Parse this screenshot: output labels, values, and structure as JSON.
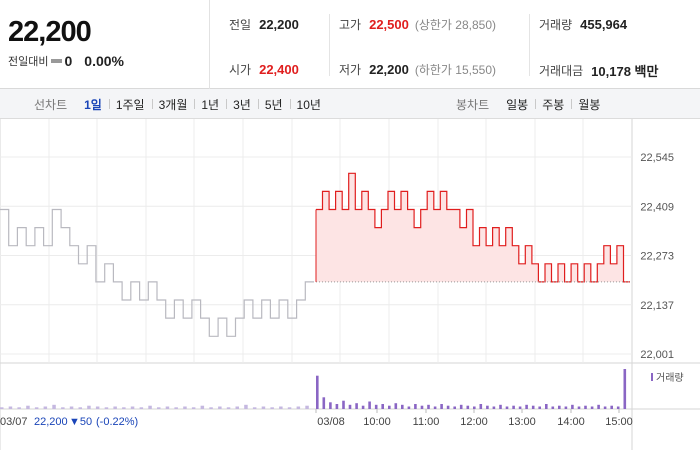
{
  "price": {
    "current": "22,200",
    "change_label": "전일대비",
    "change_value": "0",
    "change_pct": "0.00%"
  },
  "stats": {
    "prev_close": {
      "label": "전일",
      "value": "22,200"
    },
    "high": {
      "label": "고가",
      "value": "22,500",
      "sub": "(상한가 28,850)"
    },
    "volume": {
      "label": "거래량",
      "value": "455,964"
    },
    "open": {
      "label": "시가",
      "value": "22,400"
    },
    "low": {
      "label": "저가",
      "value": "22,200",
      "sub": "(하한가 15,550)"
    },
    "amount": {
      "label": "거래대금",
      "value": "10,178 백만"
    }
  },
  "line_tabs": {
    "title": "선차트",
    "items": [
      "1일",
      "1주일",
      "3개월",
      "1년",
      "3년",
      "5년",
      "10년"
    ],
    "selected": "1일"
  },
  "candle_tabs": {
    "title": "봉차트",
    "items": [
      "일봉",
      "주봉",
      "월봉"
    ]
  },
  "prev_day_info": {
    "date": "03/07",
    "price": "22,200",
    "change": "▼50",
    "change_pct": "(-0.22%)"
  },
  "colors": {
    "up": "#e01e1e",
    "down": "#1a45b8",
    "prev_line": "#b9b9c0",
    "area_fill": "#fde4e4",
    "volume_today": "#8a66c4",
    "volume_prev": "#c5b8e0"
  },
  "chart_data": {
    "type": "line",
    "y_ticks": [
      22545,
      22409,
      22273,
      22137,
      22001
    ],
    "y_tick_labels": [
      "22,545",
      "22,409",
      "22,273",
      "22,137",
      "22,001"
    ],
    "ylim": [
      22001,
      22545
    ],
    "x_labels": [
      "03/08",
      "10:00",
      "11:00",
      "12:00",
      "13:00",
      "14:00",
      "15:00"
    ],
    "volume_legend": "거래량",
    "base_price": 22200,
    "prev_day_series": {
      "name": "03/07",
      "values": [
        22400,
        22300,
        22350,
        22300,
        22350,
        22300,
        22400,
        22350,
        22300,
        22250,
        22300,
        22200,
        22250,
        22200,
        22150,
        22200,
        22150,
        22200,
        22150,
        22100,
        22150,
        22100,
        22150,
        22100,
        22050,
        22100,
        22050,
        22100,
        22150,
        22100,
        22150,
        22100,
        22150,
        22100,
        22150,
        22200
      ]
    },
    "today_series": {
      "name": "03/08",
      "values": [
        22400,
        22450,
        22400,
        22450,
        22400,
        22500,
        22400,
        22450,
        22400,
        22350,
        22400,
        22450,
        22400,
        22450,
        22400,
        22350,
        22400,
        22450,
        22400,
        22450,
        22400,
        22400,
        22350,
        22400,
        22300,
        22350,
        22300,
        22350,
        22300,
        22350,
        22300,
        22250,
        22300,
        22250,
        22200,
        22250,
        22200,
        22250,
        22200,
        22250,
        22200,
        22250,
        22200,
        22250,
        22300,
        22250,
        22300,
        22200
      ]
    },
    "volume_prev": [
      2,
      3,
      2,
      4,
      2,
      3,
      5,
      2,
      3,
      2,
      4,
      3,
      2,
      3,
      2,
      3,
      2,
      4,
      2,
      3,
      2,
      3,
      2,
      4,
      2,
      3,
      2,
      3,
      5,
      2,
      3,
      2,
      3,
      2,
      3,
      4
    ],
    "volume_today": [
      40,
      14,
      8,
      6,
      10,
      5,
      7,
      4,
      9,
      5,
      6,
      4,
      7,
      5,
      3,
      6,
      4,
      5,
      3,
      6,
      4,
      3,
      5,
      4,
      3,
      6,
      4,
      3,
      5,
      3,
      4,
      3,
      5,
      4,
      3,
      6,
      3,
      4,
      3,
      5,
      3,
      4,
      3,
      5,
      3,
      4,
      3,
      48
    ]
  }
}
